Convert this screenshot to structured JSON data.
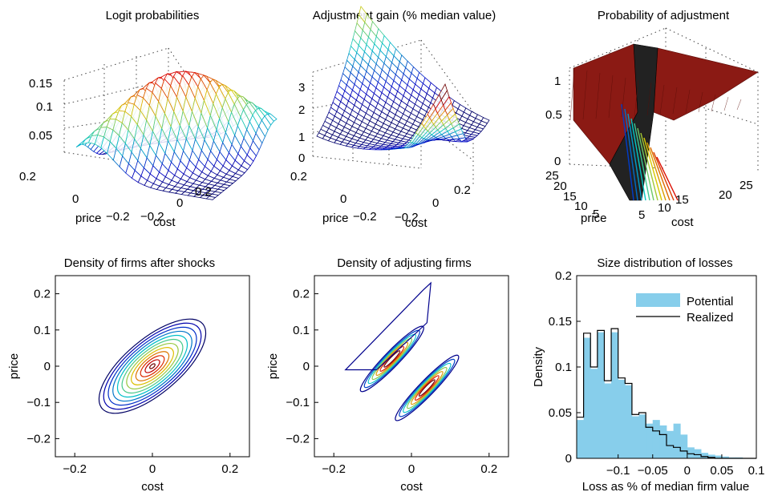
{
  "colors": {
    "surface_low": "#1f2a9c",
    "surface_high": "#c81a14",
    "hist_fill": "#87ceeb",
    "line": "#000000",
    "top_surface": "#8b1a14"
  },
  "chart_data": [
    {
      "type": "surface3d",
      "title": "Logit probabilities",
      "xlabel": "cost",
      "ylabel": "price",
      "xticks": [
        "−0.2",
        "0",
        "0.2"
      ],
      "yticks": [
        "0.2",
        "0",
        "−0.2"
      ],
      "zticks": [
        "0.05",
        "0.1",
        "0.15"
      ],
      "zlim": [
        0,
        0.18
      ],
      "grid": true
    },
    {
      "type": "surface3d",
      "title": "Adjustment gain (% median value)",
      "xlabel": "cost",
      "ylabel": "price",
      "xticks": [
        "−0.2",
        "0",
        "0.2"
      ],
      "yticks": [
        "0.2",
        "0",
        "−0.2"
      ],
      "zticks": [
        "0",
        "1",
        "2",
        "3"
      ],
      "zlim": [
        0,
        4
      ],
      "grid": true
    },
    {
      "type": "surface3d",
      "title": "Probability of adjustment",
      "xlabel": "cost",
      "ylabel": "price",
      "xticks": [
        "5",
        "10",
        "15",
        "20",
        "25"
      ],
      "yticks": [
        "25",
        "20",
        "15",
        "10",
        "5"
      ],
      "zticks": [
        "0",
        "0.5",
        "1"
      ],
      "zlim": [
        0,
        1
      ],
      "grid": true
    },
    {
      "type": "contour",
      "title": "Density of firms after shocks",
      "xlabel": "cost",
      "ylabel": "price",
      "xlim": [
        -0.25,
        0.25
      ],
      "ylim": [
        -0.25,
        0.25
      ],
      "xticks": [
        "−0.2",
        "0",
        "0.2"
      ],
      "yticks": [
        "0.2",
        "0.1",
        "0",
        "−0.1",
        "−0.2"
      ],
      "xtick_values": [
        -0.2,
        0,
        0.2
      ],
      "ytick_values": [
        0.2,
        0.1,
        0,
        -0.1,
        -0.2
      ]
    },
    {
      "type": "contour",
      "title": "Density of adjusting firms",
      "xlabel": "cost",
      "ylabel": "price",
      "xlim": [
        -0.25,
        0.25
      ],
      "ylim": [
        -0.25,
        0.25
      ],
      "xticks": [
        "−0.2",
        "0",
        "0.2"
      ],
      "yticks": [
        "0.2",
        "0.1",
        "0",
        "−0.1",
        "−0.2"
      ],
      "xtick_values": [
        -0.2,
        0,
        0.2
      ],
      "ytick_values": [
        0.2,
        0.1,
        0,
        -0.1,
        -0.2
      ]
    },
    {
      "type": "bar",
      "title": "Size distribution of losses",
      "xlabel": "Loss as % of median firm value",
      "ylabel": "Density",
      "xlim": [
        -0.16,
        0.1
      ],
      "ylim": [
        0,
        0.2
      ],
      "xticks": [
        "−0.1",
        "−0.05",
        "0",
        "0.05",
        "0.1"
      ],
      "yticks": [
        "0",
        "0.05",
        "0.1",
        "0.15",
        "0.2"
      ],
      "xtick_values": [
        -0.1,
        -0.05,
        0,
        0.05,
        0.1
      ],
      "ytick_values": [
        0,
        0.05,
        0.1,
        0.15,
        0.2
      ],
      "bin_edges": [
        -0.16,
        -0.15,
        -0.14,
        -0.13,
        -0.12,
        -0.11,
        -0.1,
        -0.09,
        -0.08,
        -0.07,
        -0.06,
        -0.05,
        -0.04,
        -0.03,
        -0.02,
        -0.01,
        0,
        0.01,
        0.02,
        0.03,
        0.04,
        0.05,
        0.06,
        0.07,
        0.08,
        0.09,
        0.1
      ],
      "series": [
        {
          "name": "Potential",
          "style": "bar",
          "values": [
            0.042,
            0.132,
            0.098,
            0.138,
            0.082,
            0.138,
            0.086,
            0.08,
            0.046,
            0.048,
            0.038,
            0.042,
            0.036,
            0.03,
            0.038,
            0.026,
            0.012,
            0.01,
            0.006,
            0.004,
            0.003,
            0.002,
            0.001,
            0.001,
            0.0,
            0.0
          ]
        },
        {
          "name": "Realized",
          "style": "step",
          "values": [
            0.045,
            0.137,
            0.1,
            0.14,
            0.085,
            0.142,
            0.088,
            0.082,
            0.048,
            0.05,
            0.034,
            0.03,
            0.026,
            0.014,
            0.012,
            0.008,
            0.005,
            0.004,
            0.002,
            0.001,
            0.0,
            0.0,
            0.0,
            0.0,
            0.0,
            0.0
          ]
        }
      ],
      "legend_position": "top-right"
    }
  ]
}
